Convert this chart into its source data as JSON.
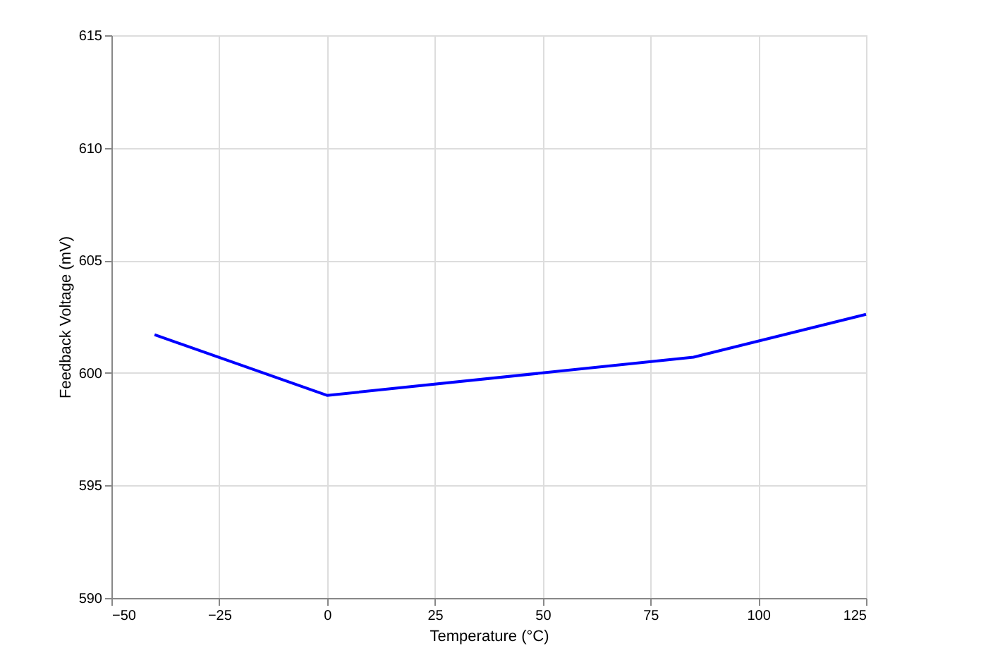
{
  "chart_data": {
    "type": "line",
    "xlabel": "Temperature (°C)",
    "ylabel": "Feedback Voltage (mV)",
    "x": [
      -40,
      0,
      85,
      125
    ],
    "series": [
      {
        "color": "#0000ff",
        "values": [
          601.7,
          599.0,
          600.7,
          602.6
        ]
      }
    ],
    "xlim": [
      -50,
      125
    ],
    "xticks": [
      -50,
      -25,
      0,
      25,
      50,
      75,
      100,
      125
    ],
    "ylim": [
      590,
      615
    ],
    "yticks": [
      590,
      595,
      600,
      605,
      610,
      615
    ],
    "grid": true,
    "marker": "none",
    "line_style": "solid"
  }
}
